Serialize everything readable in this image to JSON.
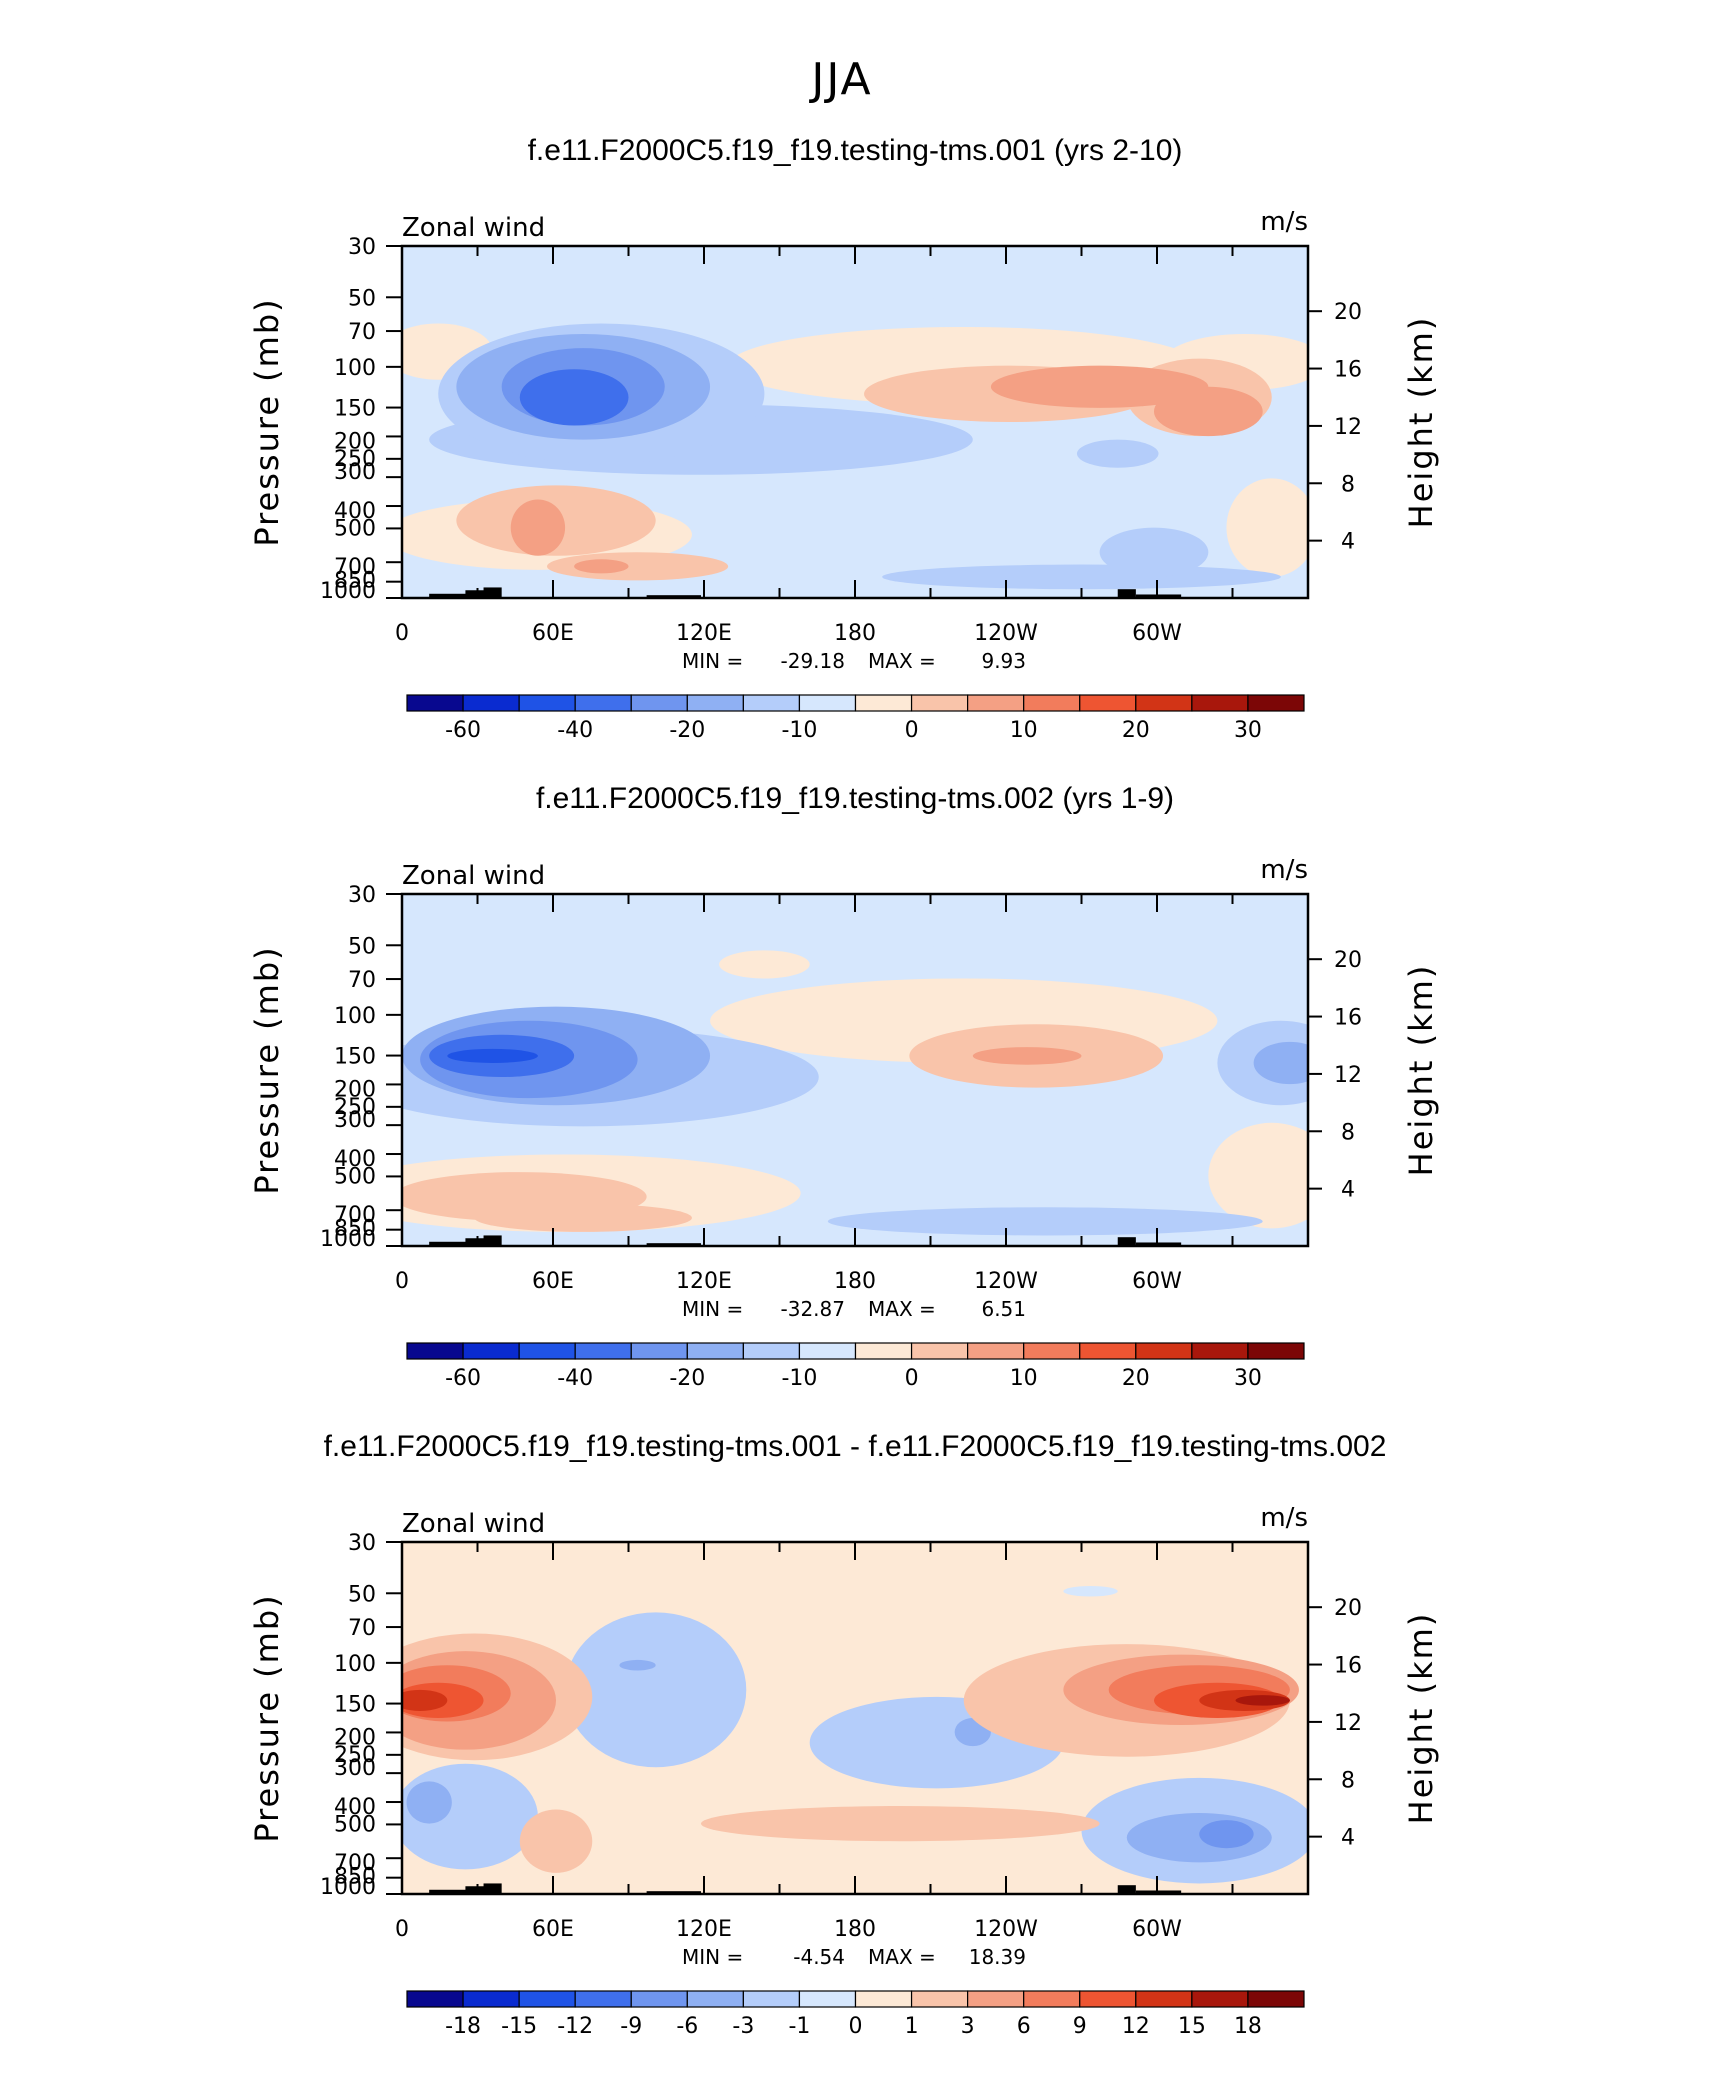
{
  "figure_title": "JJA",
  "colors": {
    "negative": [
      "#08088f",
      "#0a2bd0",
      "#1f53e6",
      "#3f6fec",
      "#6f95ef",
      "#8fb0f3",
      "#b4cdfa",
      "#d6e7fd"
    ],
    "positive": [
      "#fde9d6",
      "#f9c4aa",
      "#f4a084",
      "#f27c5c",
      "#ee5532",
      "#d23416",
      "#a8170c",
      "#7c0606"
    ],
    "topography": "#000000"
  },
  "chart_data": [
    {
      "type": "heatmap",
      "panel_id": "top",
      "title": "f.e11.F2000C5.f19_f19.testing-tms.001 (yrs 2-10)",
      "left_string": "Zonal wind",
      "right_string": "m/s",
      "xlabel": "",
      "ylabel": "Pressure (mb)",
      "ylabel_right": "Height (km)",
      "x_ticks": [
        "0",
        "60E",
        "120E",
        "180",
        "120W",
        "60W"
      ],
      "y_ticks": [
        "30",
        "50",
        "70",
        "100",
        "150",
        "200",
        "250",
        "300",
        "400",
        "500",
        "700",
        "850",
        "1000"
      ],
      "y_right_ticks": [
        "20",
        "16",
        "12",
        "8",
        "4"
      ],
      "min_label": "MIN =",
      "min_value": "-29.18",
      "max_label": "MAX =",
      "max_value": "9.93",
      "colorbar_levels": [
        "-60",
        "-40",
        "-20",
        "-10",
        "0",
        "10",
        "20",
        "30"
      ]
    },
    {
      "type": "heatmap",
      "panel_id": "middle",
      "title": "f.e11.F2000C5.f19_f19.testing-tms.002 (yrs 1-9)",
      "left_string": "Zonal wind",
      "right_string": "m/s",
      "xlabel": "",
      "ylabel": "Pressure (mb)",
      "ylabel_right": "Height (km)",
      "x_ticks": [
        "0",
        "60E",
        "120E",
        "180",
        "120W",
        "60W"
      ],
      "y_ticks": [
        "30",
        "50",
        "70",
        "100",
        "150",
        "200",
        "250",
        "300",
        "400",
        "500",
        "700",
        "850",
        "1000"
      ],
      "y_right_ticks": [
        "20",
        "16",
        "12",
        "8",
        "4"
      ],
      "min_label": "MIN =",
      "min_value": "-32.87",
      "max_label": "MAX =",
      "max_value": "6.51",
      "colorbar_levels": [
        "-60",
        "-40",
        "-20",
        "-10",
        "0",
        "10",
        "20",
        "30"
      ]
    },
    {
      "type": "heatmap",
      "panel_id": "bottom",
      "title": "f.e11.F2000C5.f19_f19.testing-tms.001 - f.e11.F2000C5.f19_f19.testing-tms.002",
      "left_string": "Zonal wind",
      "right_string": "m/s",
      "xlabel": "",
      "ylabel": "Pressure (mb)",
      "ylabel_right": "Height (km)",
      "x_ticks": [
        "0",
        "60E",
        "120E",
        "180",
        "120W",
        "60W"
      ],
      "y_ticks": [
        "30",
        "50",
        "70",
        "100",
        "150",
        "200",
        "250",
        "300",
        "400",
        "500",
        "700",
        "850",
        "1000"
      ],
      "y_right_ticks": [
        "20",
        "16",
        "12",
        "8",
        "4"
      ],
      "min_label": "MIN =",
      "min_value": "-4.54",
      "max_label": "MAX =",
      "max_value": "18.39",
      "colorbar_levels": [
        "-18",
        "-15",
        "-12",
        "-9",
        "-6",
        "-3",
        "-1",
        "0",
        "1",
        "3",
        "6",
        "9",
        "12",
        "15",
        "18"
      ]
    }
  ]
}
